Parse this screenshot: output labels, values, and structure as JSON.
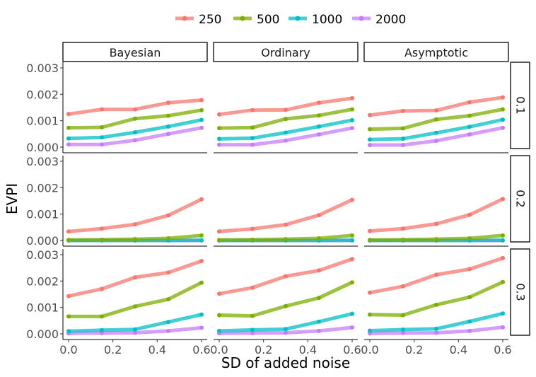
{
  "chart_data": {
    "type": "line",
    "xlabel": "SD of added noise",
    "ylabel": "EVPI",
    "xlim": [
      0,
      0.6
    ],
    "ylim": [
      0,
      0.003
    ],
    "x_ticks": [
      0.0,
      0.2,
      0.4,
      0.6
    ],
    "x_tick_labels": [
      "0.0",
      "0.2",
      "0.4",
      "0.6"
    ],
    "y_ticks": [
      0,
      0.001,
      0.002,
      0.003
    ],
    "y_tick_labels": [
      "0.000",
      "0.001",
      "0.002",
      "0.003"
    ],
    "x": [
      0,
      0.15,
      0.3,
      0.45,
      0.6
    ],
    "legend_position": "top",
    "column_facets": [
      "Bayesian",
      "Ordinary",
      "Asymptotic"
    ],
    "row_facets": [
      "0.1",
      "0.2",
      "0.3"
    ],
    "series_names": [
      "250",
      "500",
      "1000",
      "2000"
    ],
    "series_colors": [
      "#F8766D",
      "#7CAE00",
      "#00BFC4",
      "#C77CFF"
    ],
    "panels": [
      {
        "row": "0.1",
        "col": "Bayesian",
        "series": [
          {
            "name": "250",
            "values": [
              0.00125,
              0.00143,
              0.00143,
              0.00168,
              0.00178
            ]
          },
          {
            "name": "500",
            "values": [
              0.00073,
              0.00075,
              0.00108,
              0.00119,
              0.0014
            ]
          },
          {
            "name": "1000",
            "values": [
              0.00033,
              0.00037,
              0.00056,
              0.00078,
              0.00103
            ]
          },
          {
            "name": "2000",
            "values": [
              0.0001,
              0.0001,
              0.00026,
              0.0005,
              0.00073
            ]
          }
        ]
      },
      {
        "row": "0.1",
        "col": "Ordinary",
        "series": [
          {
            "name": "250",
            "values": [
              0.00124,
              0.0014,
              0.00141,
              0.00168,
              0.00185
            ]
          },
          {
            "name": "500",
            "values": [
              0.00072,
              0.00074,
              0.00107,
              0.0012,
              0.00143
            ]
          },
          {
            "name": "1000",
            "values": [
              0.00031,
              0.00034,
              0.00055,
              0.00078,
              0.00102
            ]
          },
          {
            "name": "2000",
            "values": [
              9e-05,
              9e-05,
              0.00025,
              0.00048,
              0.00072
            ]
          }
        ]
      },
      {
        "row": "0.1",
        "col": "Asymptotic",
        "series": [
          {
            "name": "250",
            "values": [
              0.00121,
              0.00137,
              0.00139,
              0.0017,
              0.00188
            ]
          },
          {
            "name": "500",
            "values": [
              0.00068,
              0.00071,
              0.00105,
              0.00119,
              0.00143
            ]
          },
          {
            "name": "1000",
            "values": [
              0.00029,
              0.00032,
              0.00054,
              0.00077,
              0.00104
            ]
          },
          {
            "name": "2000",
            "values": [
              8e-05,
              8e-05,
              0.00024,
              0.00048,
              0.00073
            ]
          }
        ]
      },
      {
        "row": "0.2",
        "col": "Bayesian",
        "series": [
          {
            "name": "250",
            "values": [
              0.00034,
              0.00045,
              0.00061,
              0.00095,
              0.00156
            ]
          },
          {
            "name": "500",
            "values": [
              2e-05,
              3e-05,
              5e-05,
              8e-05,
              0.00019
            ]
          },
          {
            "name": "1000",
            "values": [
              0.0,
              0.0,
              0.0,
              0.0,
              1e-05
            ]
          },
          {
            "name": "2000",
            "values": [
              0.0,
              0.0,
              0.0,
              0.0,
              0.0
            ]
          }
        ]
      },
      {
        "row": "0.2",
        "col": "Ordinary",
        "series": [
          {
            "name": "250",
            "values": [
              0.00034,
              0.00044,
              0.0006,
              0.00096,
              0.00154
            ]
          },
          {
            "name": "500",
            "values": [
              2e-05,
              3e-05,
              5e-05,
              8e-05,
              0.00019
            ]
          },
          {
            "name": "1000",
            "values": [
              0.0,
              0.0,
              0.0,
              0.0,
              1e-05
            ]
          },
          {
            "name": "2000",
            "values": [
              0.0,
              0.0,
              0.0,
              0.0,
              0.0
            ]
          }
        ]
      },
      {
        "row": "0.2",
        "col": "Asymptotic",
        "series": [
          {
            "name": "250",
            "values": [
              0.00036,
              0.00045,
              0.00063,
              0.00097,
              0.00157
            ]
          },
          {
            "name": "500",
            "values": [
              2e-05,
              3e-05,
              5e-05,
              8e-05,
              0.00019
            ]
          },
          {
            "name": "1000",
            "values": [
              0.0,
              0.0,
              0.0,
              0.0,
              1e-05
            ]
          },
          {
            "name": "2000",
            "values": [
              0.0,
              0.0,
              0.0,
              0.0,
              0.0
            ]
          }
        ]
      },
      {
        "row": "0.3",
        "col": "Bayesian",
        "series": [
          {
            "name": "250",
            "values": [
              0.00143,
              0.0017,
              0.00214,
              0.00232,
              0.00276
            ]
          },
          {
            "name": "500",
            "values": [
              0.00066,
              0.00066,
              0.00104,
              0.00131,
              0.00194
            ]
          },
          {
            "name": "1000",
            "values": [
              0.0001,
              0.00014,
              0.00017,
              0.00045,
              0.00073
            ]
          },
          {
            "name": "2000",
            "values": [
              2e-05,
              3e-05,
              4e-05,
              0.00011,
              0.00023
            ]
          }
        ]
      },
      {
        "row": "0.3",
        "col": "Ordinary",
        "series": [
          {
            "name": "250",
            "values": [
              0.00152,
              0.00175,
              0.00218,
              0.0024,
              0.00283
            ]
          },
          {
            "name": "500",
            "values": [
              0.00071,
              0.00068,
              0.00105,
              0.00136,
              0.00195
            ]
          },
          {
            "name": "1000",
            "values": [
              0.00011,
              0.00015,
              0.00018,
              0.00046,
              0.00076
            ]
          },
          {
            "name": "2000",
            "values": [
              2e-05,
              3e-05,
              4e-05,
              0.00011,
              0.00024
            ]
          }
        ]
      },
      {
        "row": "0.3",
        "col": "Asymptotic",
        "series": [
          {
            "name": "250",
            "values": [
              0.00156,
              0.0018,
              0.00224,
              0.00245,
              0.00287
            ]
          },
          {
            "name": "500",
            "values": [
              0.00073,
              0.00071,
              0.0011,
              0.00139,
              0.00196
            ]
          },
          {
            "name": "1000",
            "values": [
              0.00012,
              0.00016,
              0.00019,
              0.00047,
              0.00077
            ]
          },
          {
            "name": "2000",
            "values": [
              2e-05,
              3e-05,
              4e-05,
              0.00011,
              0.00025
            ]
          }
        ]
      }
    ]
  }
}
